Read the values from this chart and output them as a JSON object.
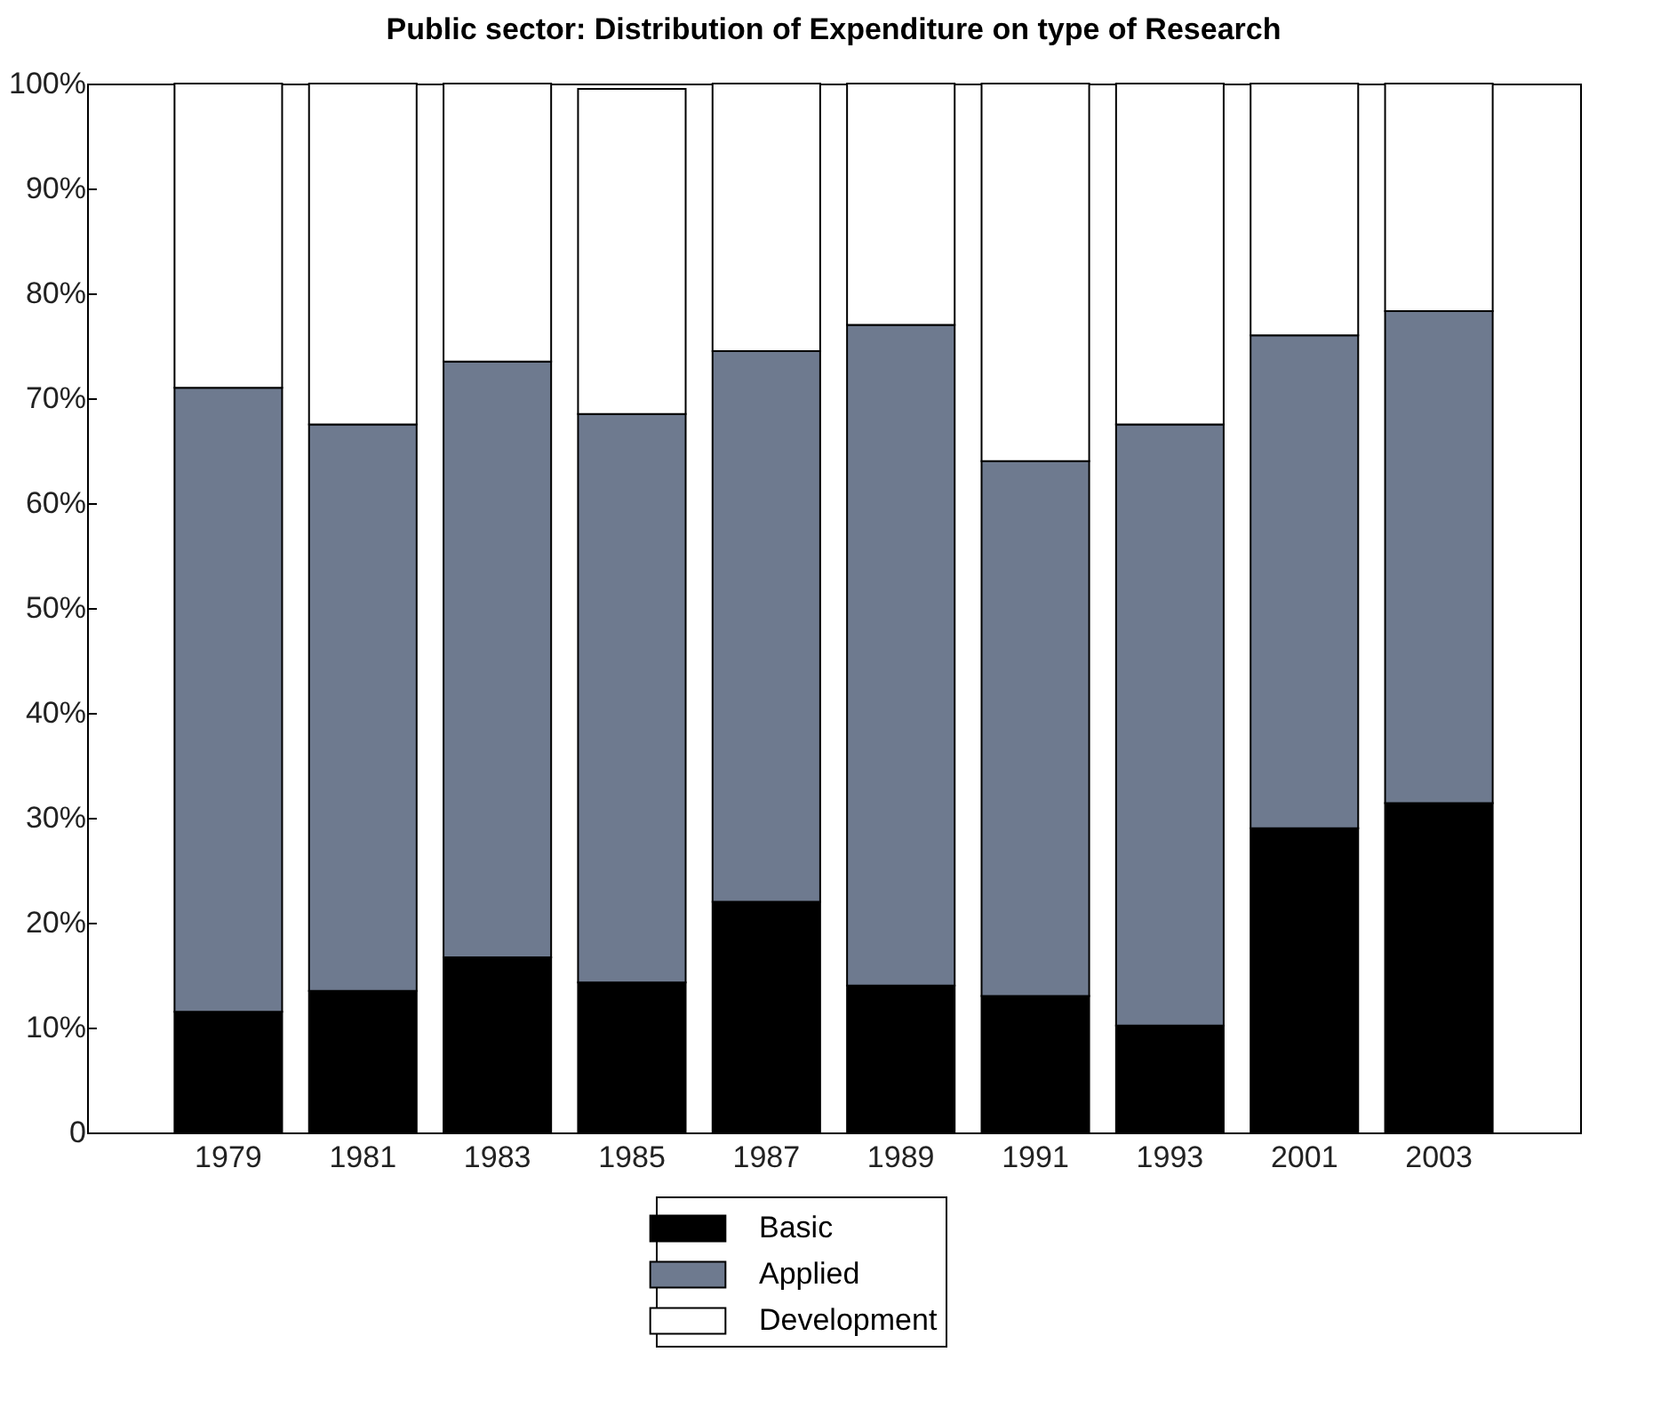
{
  "chart_data": {
    "type": "bar",
    "title": "Public sector: Distribution of Expenditure on type of Research",
    "categories": [
      "1979",
      "1981",
      "1983",
      "1985",
      "1987",
      "1989",
      "1991",
      "1993",
      "2001",
      "2003"
    ],
    "stacked": true,
    "series": [
      {
        "name": "Basic",
        "color": "#000000",
        "values": [
          11.5,
          13.5,
          16.7,
          14.3,
          22,
          14,
          13,
          10.2,
          29,
          31.4
        ]
      },
      {
        "name": "Applied",
        "color": "#6e7a8f",
        "values": [
          59.5,
          54,
          56.8,
          54.2,
          52.5,
          63,
          51,
          57.3,
          47,
          46.9
        ]
      },
      {
        "name": "Development",
        "color": "#ffffff",
        "values": [
          29,
          32.5,
          26.5,
          31,
          25.5,
          23,
          36,
          32.5,
          24,
          21.7
        ]
      }
    ],
    "ylim": [
      0,
      100
    ],
    "yticks": [
      0,
      {
        "value": 10,
        "label": "10%"
      },
      {
        "value": 20,
        "label": "20%"
      },
      {
        "value": 30,
        "label": "30%"
      },
      {
        "value": 40,
        "label": "40%"
      },
      {
        "value": 50,
        "label": "50%"
      },
      {
        "value": 60,
        "label": "60%"
      },
      {
        "value": 70,
        "label": "70%"
      },
      {
        "value": 80,
        "label": "80%"
      },
      {
        "value": 90,
        "label": "90%"
      },
      {
        "value": 100,
        "label": "100%"
      }
    ],
    "grid": false,
    "legend": "bottom"
  }
}
